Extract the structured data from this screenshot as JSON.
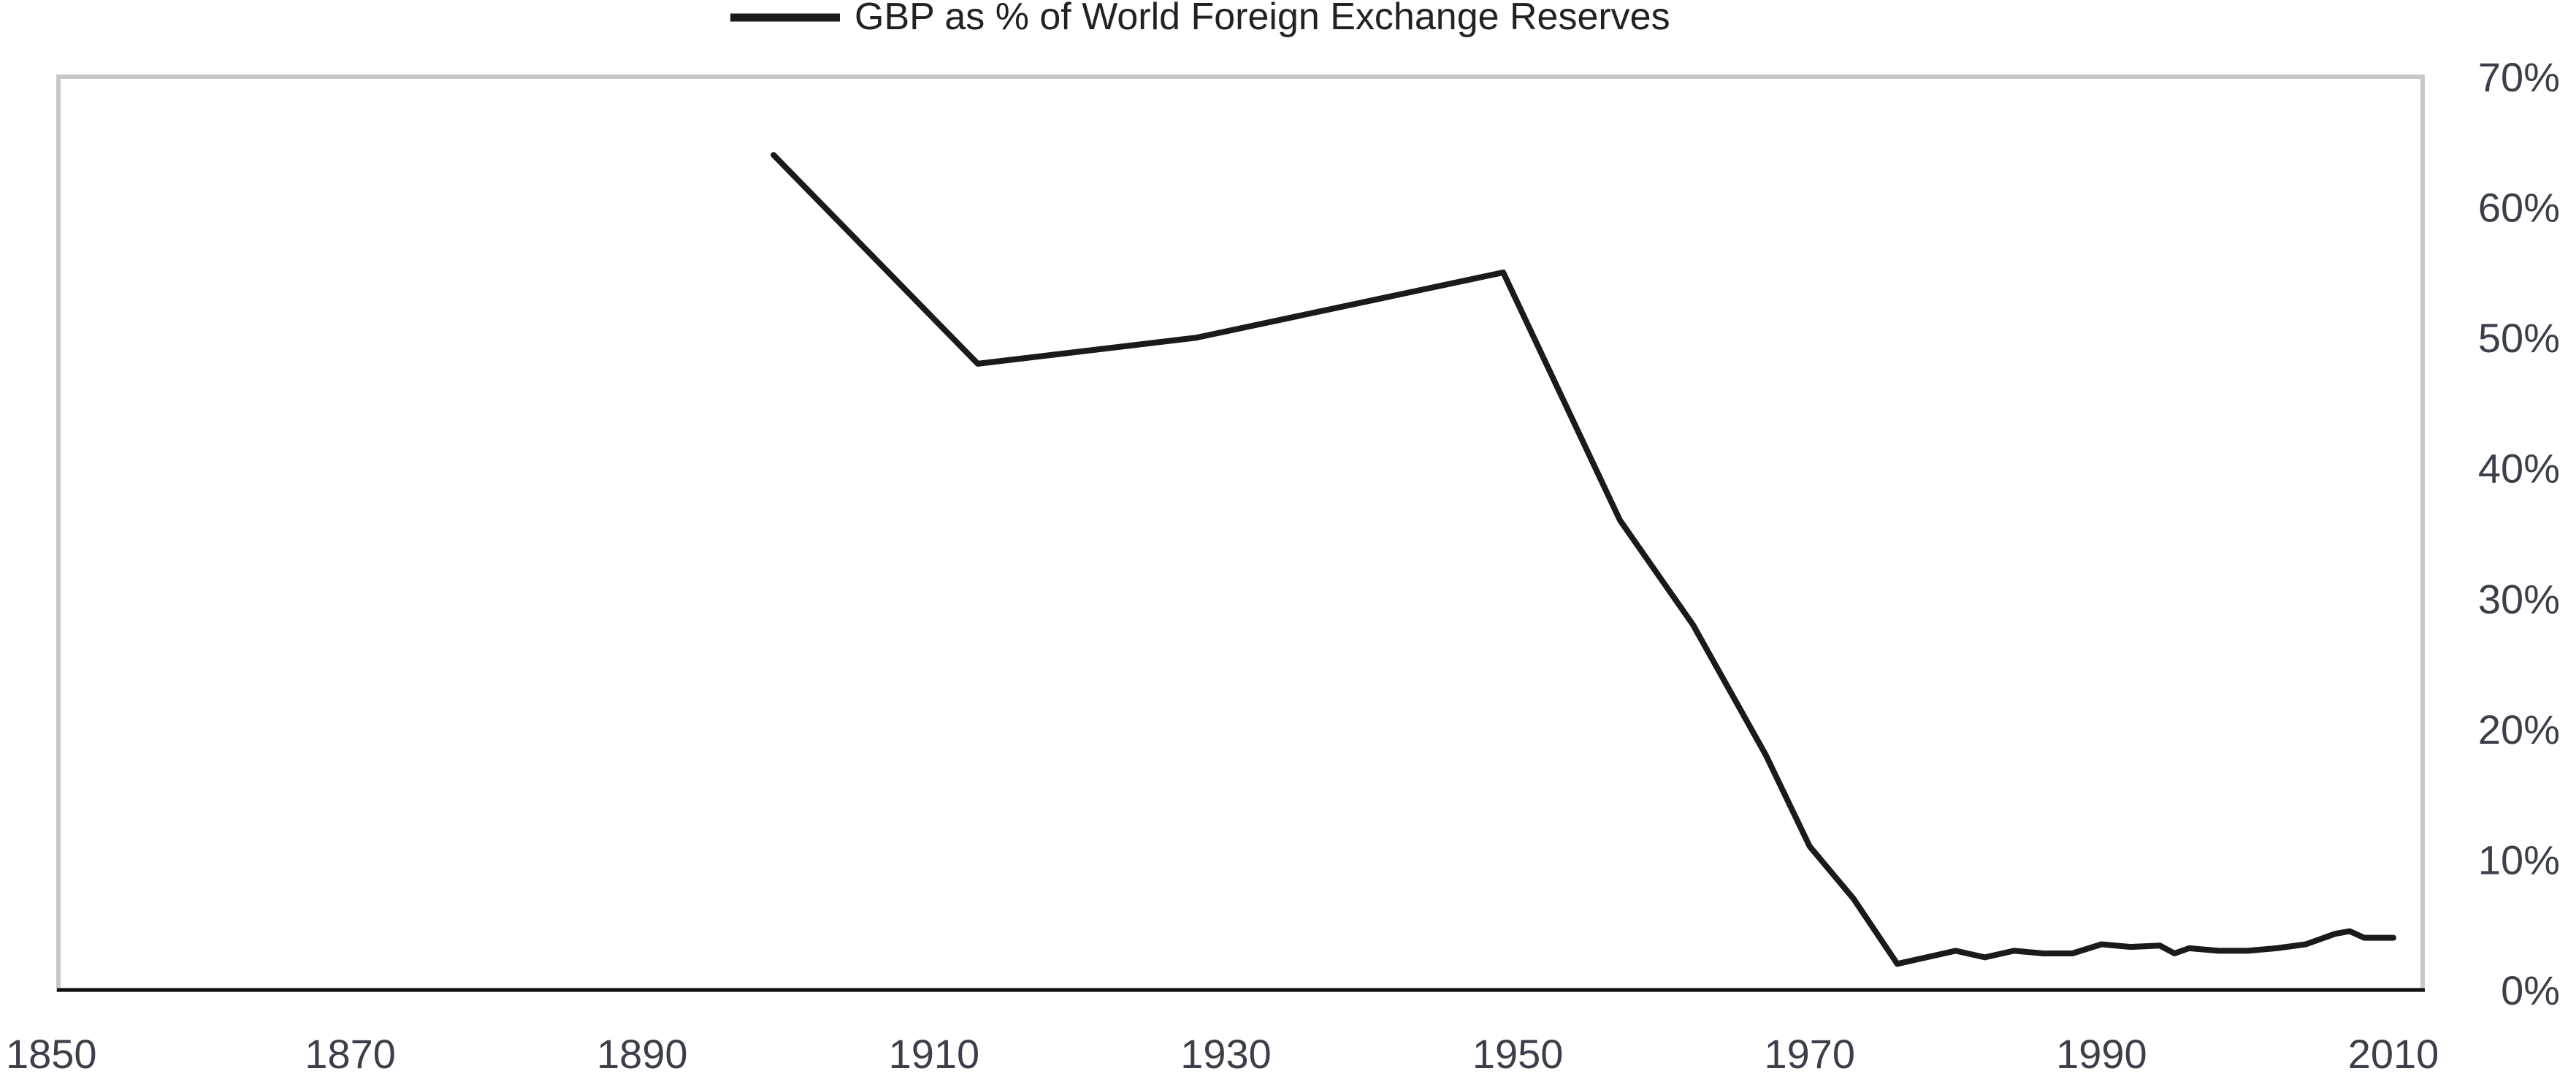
{
  "chart_data": {
    "type": "line",
    "title": "",
    "xlabel": "",
    "ylabel": "",
    "xlim": [
      1850,
      2012
    ],
    "ylim": [
      0,
      70
    ],
    "x_ticks": [
      "1850",
      "1870",
      "1890",
      "1910",
      "1930",
      "1950",
      "1970",
      "1990",
      "2010"
    ],
    "y_ticks": [
      "0%",
      "10%",
      "20%",
      "30%",
      "40%",
      "50%",
      "60%",
      "70%"
    ],
    "legend_position": "top-center",
    "grid": false,
    "series": [
      {
        "name": "GBP as % of World Foreign Exchange Reserves",
        "color": "#1a1a1a",
        "x": [
          1899,
          1913,
          1928,
          1949,
          1957,
          1962,
          1967,
          1970,
          1973,
          1976,
          1980,
          1982,
          1984,
          1986,
          1988,
          1990,
          1992,
          1994,
          1995,
          1996,
          1998,
          2000,
          2002,
          2004,
          2006,
          2007,
          2008,
          2010
        ],
        "values": [
          64,
          48,
          50,
          55,
          36,
          28,
          18,
          11,
          7,
          2,
          3,
          2.5,
          3,
          2.8,
          2.8,
          3.5,
          3.3,
          3.4,
          2.8,
          3.2,
          3.0,
          3.0,
          3.2,
          3.5,
          4.3,
          4.5,
          4.0,
          4.0
        ]
      }
    ]
  }
}
